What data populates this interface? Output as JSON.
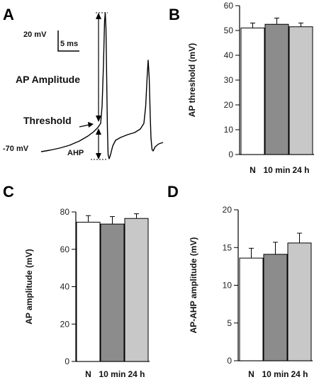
{
  "panel_a": {
    "letter": "A",
    "scale_mv": "20 mV",
    "scale_ms": "5 ms",
    "amplitude_label": "AP Amplitude",
    "threshold_label": "Threshold",
    "rest_label": "-70 mV",
    "ahp_label": "AHP"
  },
  "chart_data": [
    {
      "type": "bar",
      "panel": "B",
      "categories": [
        "N",
        "10 min",
        "24 h"
      ],
      "values": [
        51,
        52.5,
        51.5
      ],
      "errors": [
        2,
        2.5,
        1.5
      ],
      "ylabel": "AP threshold (mV)",
      "ylim": [
        0,
        60
      ],
      "yticks": [
        0,
        10,
        20,
        30,
        40,
        50,
        60
      ],
      "colors": [
        "#ffffff",
        "#8c8c8c",
        "#c8c8c8"
      ]
    },
    {
      "type": "bar",
      "panel": "C",
      "categories": [
        "N",
        "10 min",
        "24 h"
      ],
      "values": [
        74.5,
        73.5,
        76.5
      ],
      "errors": [
        3.5,
        4,
        2.5
      ],
      "ylabel": "AP amplitude (mV)",
      "ylim": [
        0,
        80
      ],
      "yticks": [
        0,
        20,
        40,
        60,
        80
      ],
      "colors": [
        "#ffffff",
        "#8c8c8c",
        "#c8c8c8"
      ]
    },
    {
      "type": "bar",
      "panel": "D",
      "categories": [
        "N",
        "10 min",
        "24 h"
      ],
      "values": [
        13.6,
        14.1,
        15.6
      ],
      "errors": [
        1.3,
        1.6,
        1.3
      ],
      "ylabel": "AP-AHP amplitude (mV)",
      "ylim": [
        0,
        20
      ],
      "yticks": [
        0,
        5,
        10,
        15,
        20
      ],
      "colors": [
        "#ffffff",
        "#8c8c8c",
        "#c8c8c8"
      ]
    }
  ]
}
